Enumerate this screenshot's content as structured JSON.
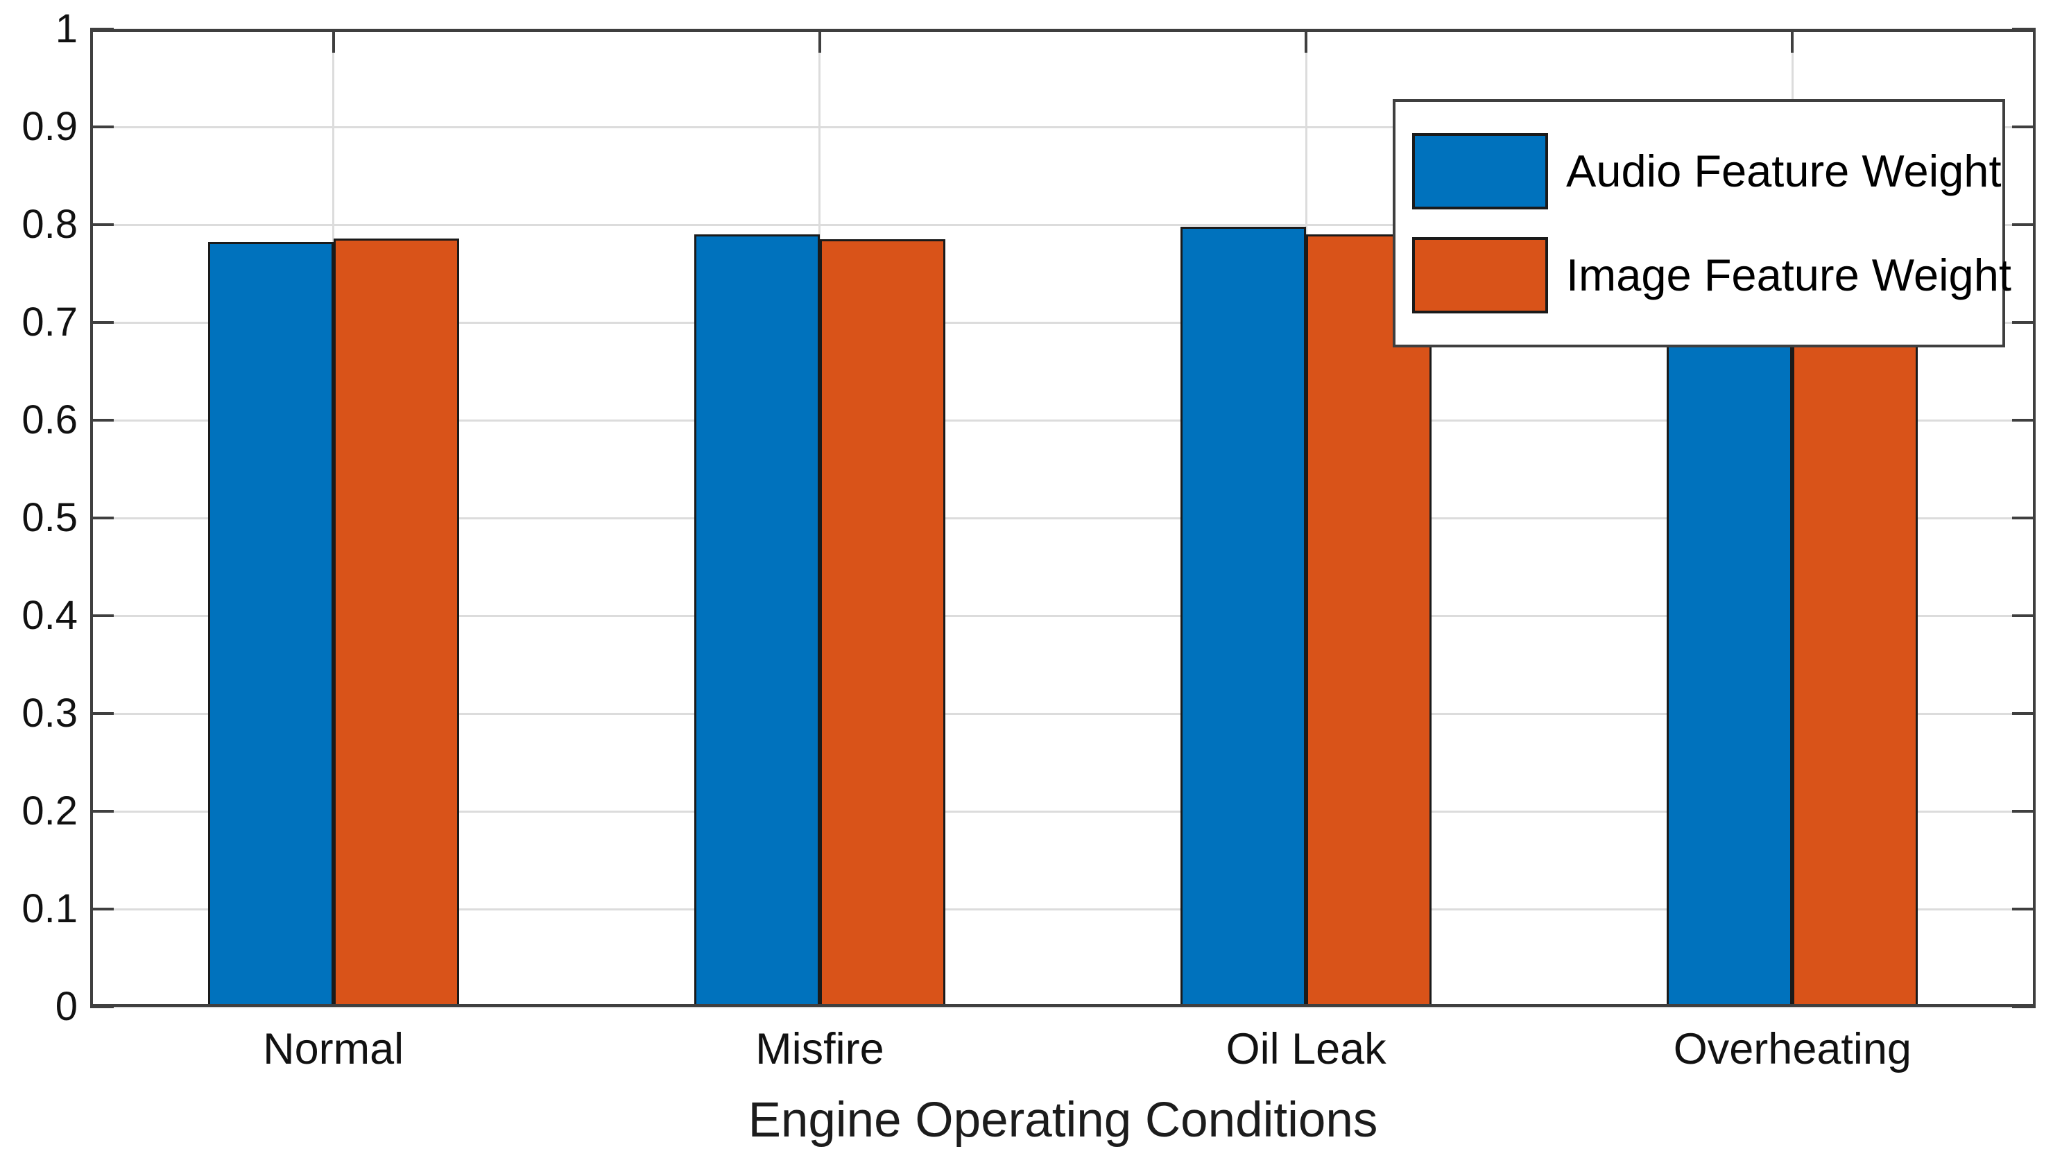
{
  "chart_data": {
    "type": "bar",
    "title": "",
    "xlabel": "Engine Operating Conditions",
    "ylabel": "",
    "categories": [
      "Normal",
      "Misfire",
      "Oil Leak",
      "Overheating"
    ],
    "series": [
      {
        "name": "Audio Feature Weight",
        "color": "#0072BD",
        "values": [
          0.782,
          0.79,
          0.798,
          0.798
        ]
      },
      {
        "name": "Image Feature Weight",
        "color": "#D95319",
        "values": [
          0.786,
          0.785,
          0.79,
          0.792
        ]
      }
    ],
    "ylim": [
      0,
      1
    ],
    "yticks": [
      0,
      0.1,
      0.2,
      0.3,
      0.4,
      0.5,
      0.6,
      0.7,
      0.8,
      0.9,
      1
    ],
    "ytick_labels": [
      "0",
      "0.1",
      "0.2",
      "0.3",
      "0.4",
      "0.5",
      "0.6",
      "0.7",
      "0.8",
      "0.9",
      "1"
    ],
    "grid": "on",
    "legend_position": "northeast",
    "bar_edge_color": "#1a1a1a",
    "axis_color": "#3f3f3f",
    "grid_color": "#dcdcdc",
    "plot_background": "#ffffff"
  }
}
